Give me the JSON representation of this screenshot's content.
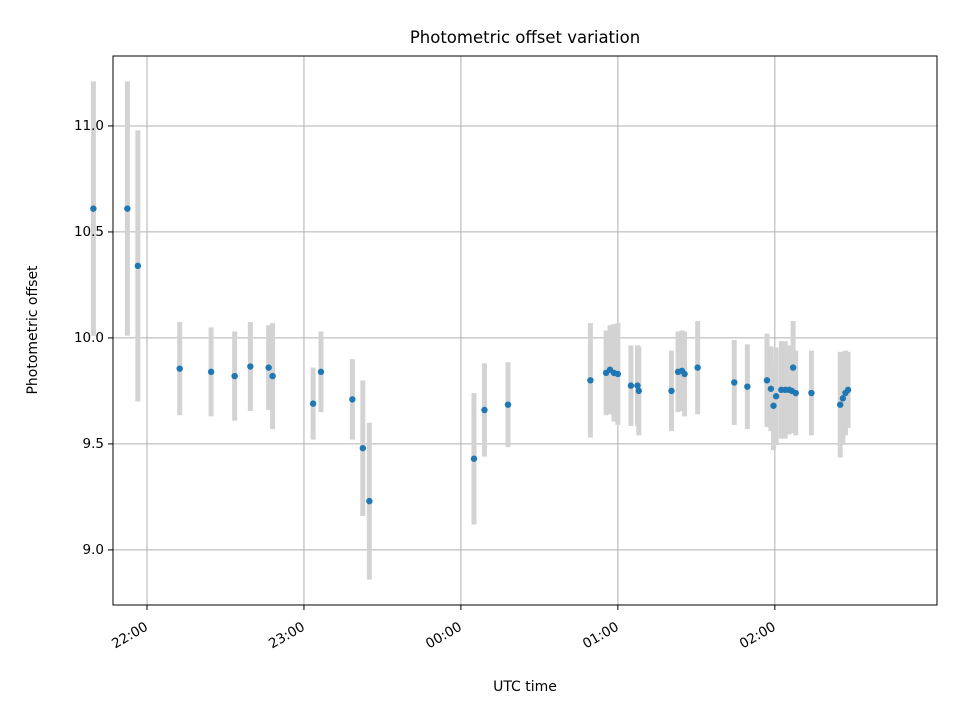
{
  "chart_data": {
    "type": "scatter",
    "title": "Photometric offset variation",
    "xlabel": "UTC time",
    "ylabel": "Photometric offset",
    "x_unit": "minutes after 00:00 UTC",
    "xlim": [
      -133,
      182
    ],
    "ylim": [
      8.74,
      11.33
    ],
    "x_ticks": [
      {
        "value": -120,
        "label": "22:00"
      },
      {
        "value": -60,
        "label": "23:00"
      },
      {
        "value": 0,
        "label": "00:00"
      },
      {
        "value": 60,
        "label": "01:00"
      },
      {
        "value": 120,
        "label": "02:00"
      }
    ],
    "y_ticks": [
      {
        "value": 9.0,
        "label": "9.0"
      },
      {
        "value": 9.5,
        "label": "9.5"
      },
      {
        "value": 10.0,
        "label": "10.0"
      },
      {
        "value": 10.5,
        "label": "10.5"
      },
      {
        "value": 11.0,
        "label": "11.0"
      }
    ],
    "grid": true,
    "point_color": "#1f77b4",
    "errorbar_color": "#d3d3d3",
    "points": [
      {
        "x": -140.5,
        "y": 10.61,
        "err": 0.6
      },
      {
        "x": -127.5,
        "y": 10.61,
        "err": 0.6
      },
      {
        "x": -123.5,
        "y": 10.34,
        "err": 0.64
      },
      {
        "x": -107.5,
        "y": 9.855,
        "err": 0.22
      },
      {
        "x": -95.5,
        "y": 9.84,
        "err": 0.21
      },
      {
        "x": -86.5,
        "y": 9.82,
        "err": 0.21
      },
      {
        "x": -80.5,
        "y": 9.865,
        "err": 0.21
      },
      {
        "x": -73.5,
        "y": 9.86,
        "err": 0.2
      },
      {
        "x": -72.0,
        "y": 9.82,
        "err": 0.25
      },
      {
        "x": -56.5,
        "y": 9.69,
        "err": 0.17
      },
      {
        "x": -53.5,
        "y": 9.84,
        "err": 0.19
      },
      {
        "x": -41.5,
        "y": 9.71,
        "err": 0.19
      },
      {
        "x": -37.5,
        "y": 9.48,
        "err": 0.32
      },
      {
        "x": -35.0,
        "y": 9.23,
        "err": 0.37
      },
      {
        "x": 5.0,
        "y": 9.43,
        "err": 0.31
      },
      {
        "x": 9.0,
        "y": 9.66,
        "err": 0.22
      },
      {
        "x": 18.0,
        "y": 9.685,
        "err": 0.2
      },
      {
        "x": 49.5,
        "y": 9.8,
        "err": 0.27
      },
      {
        "x": 55.5,
        "y": 9.835,
        "err": 0.2
      },
      {
        "x": 57.0,
        "y": 9.85,
        "err": 0.21
      },
      {
        "x": 58.5,
        "y": 9.835,
        "err": 0.23
      },
      {
        "x": 60.0,
        "y": 9.83,
        "err": 0.24
      },
      {
        "x": 65.0,
        "y": 9.775,
        "err": 0.19
      },
      {
        "x": 67.5,
        "y": 9.775,
        "err": 0.19
      },
      {
        "x": 68.0,
        "y": 9.75,
        "err": 0.21
      },
      {
        "x": 80.5,
        "y": 9.75,
        "err": 0.19
      },
      {
        "x": 83.0,
        "y": 9.84,
        "err": 0.19
      },
      {
        "x": 84.5,
        "y": 9.845,
        "err": 0.19
      },
      {
        "x": 85.5,
        "y": 9.83,
        "err": 0.2
      },
      {
        "x": 90.5,
        "y": 9.86,
        "err": 0.22
      },
      {
        "x": 104.5,
        "y": 9.79,
        "err": 0.2
      },
      {
        "x": 109.5,
        "y": 9.77,
        "err": 0.2
      },
      {
        "x": 117.0,
        "y": 9.8,
        "err": 0.22
      },
      {
        "x": 118.5,
        "y": 9.76,
        "err": 0.2
      },
      {
        "x": 119.5,
        "y": 9.68,
        "err": 0.21
      },
      {
        "x": 120.5,
        "y": 9.725,
        "err": 0.23
      },
      {
        "x": 122.5,
        "y": 9.755,
        "err": 0.23
      },
      {
        "x": 124.0,
        "y": 9.755,
        "err": 0.23
      },
      {
        "x": 125.5,
        "y": 9.755,
        "err": 0.21
      },
      {
        "x": 126.5,
        "y": 9.75,
        "err": 0.2
      },
      {
        "x": 127.0,
        "y": 9.86,
        "err": 0.22
      },
      {
        "x": 128.0,
        "y": 9.74,
        "err": 0.2
      },
      {
        "x": 134.0,
        "y": 9.74,
        "err": 0.2
      },
      {
        "x": 145.0,
        "y": 9.685,
        "err": 0.25
      },
      {
        "x": 146.0,
        "y": 9.715,
        "err": 0.22
      },
      {
        "x": 147.0,
        "y": 9.74,
        "err": 0.2
      },
      {
        "x": 148.0,
        "y": 9.755,
        "err": 0.18
      }
    ]
  }
}
